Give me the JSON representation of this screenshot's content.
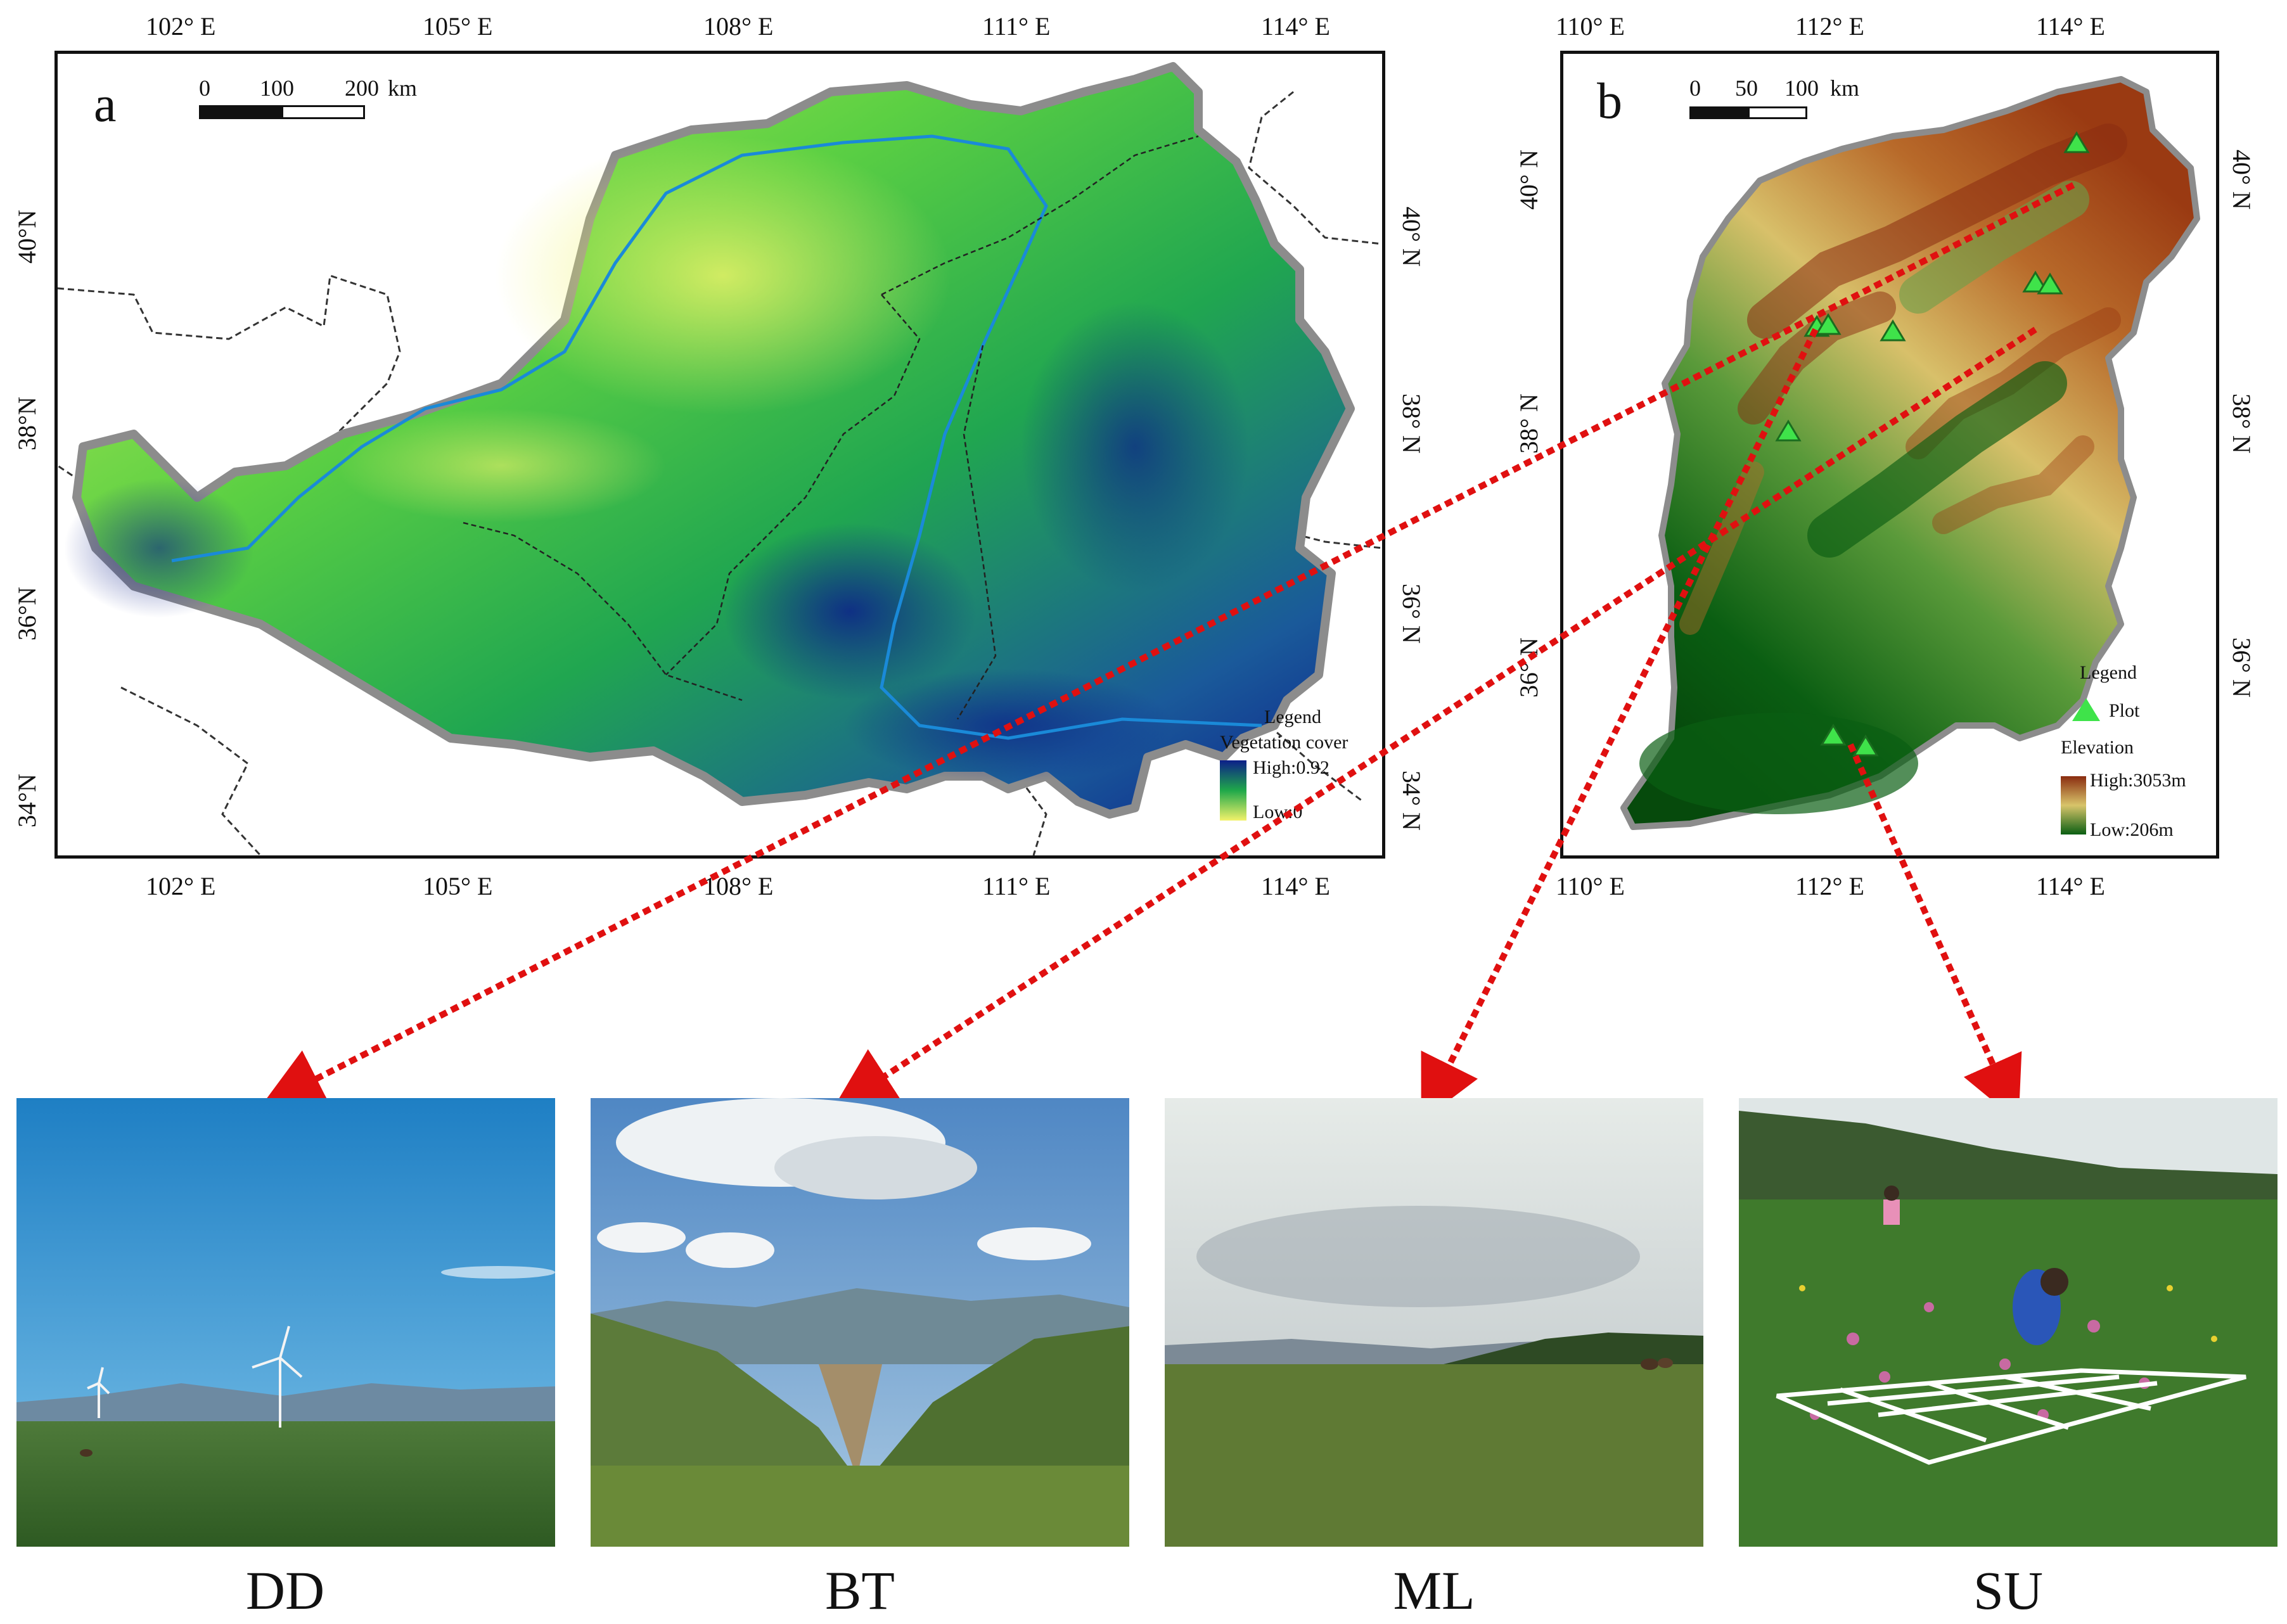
{
  "panel_a": {
    "letter": "a",
    "top_ticks": [
      "102° E",
      "105° E",
      "108° E",
      "111° E",
      "114° E"
    ],
    "bottom_ticks": [
      "102° E",
      "105° E",
      "108° E",
      "111° E",
      "114° E"
    ],
    "left_ticks": [
      "40°N",
      "38°N",
      "36°N",
      "34°N"
    ],
    "right_ticks": [
      "40° N",
      "38° N",
      "36° N",
      "34° N"
    ],
    "scalebar": {
      "labels": [
        "0",
        "100",
        "200"
      ],
      "unit": "km"
    },
    "legend": {
      "title": "Legend",
      "subtitle": "Vegetation cover",
      "high": "High:0.92",
      "low": "Low:0"
    },
    "colors": {
      "high": "#0c1f8a",
      "mid": "#1fa84a",
      "low": "#f2f26a"
    }
  },
  "panel_b": {
    "letter": "b",
    "top_ticks": [
      "110° E",
      "112° E",
      "114° E"
    ],
    "bottom_ticks": [
      "110° E",
      "112° E",
      "114° E"
    ],
    "left_ticks": [
      "40° N",
      "38° N",
      "36° N"
    ],
    "right_ticks": [
      "40° N",
      "38° N",
      "36° N"
    ],
    "scalebar": {
      "labels": [
        "0",
        "50",
        "100"
      ],
      "unit": "km"
    },
    "legend": {
      "title": "Legend",
      "plot_label": "Plot",
      "elevation_title": "Elevation",
      "high": "High:3053m",
      "low": "Low:206m"
    },
    "colors": {
      "high": "#8a2c10",
      "mid": "#d8c46a",
      "low": "#0a5e12",
      "plot": "#3fe34a"
    }
  },
  "photos": [
    {
      "label": "DD",
      "scene": "wind turbines on grassland",
      "sky": "#1e7fc4"
    },
    {
      "label": "BT",
      "scene": "alpine meadow valley with clouds",
      "sky": "#5a8fc8"
    },
    {
      "label": "ML",
      "scene": "overcast meadow with cattle",
      "sky": "#d4d8d8"
    },
    {
      "label": "SU",
      "scene": "researchers with quadrat frame",
      "sky": "#dfe6e6"
    }
  ],
  "arrow_color": "#e01010"
}
